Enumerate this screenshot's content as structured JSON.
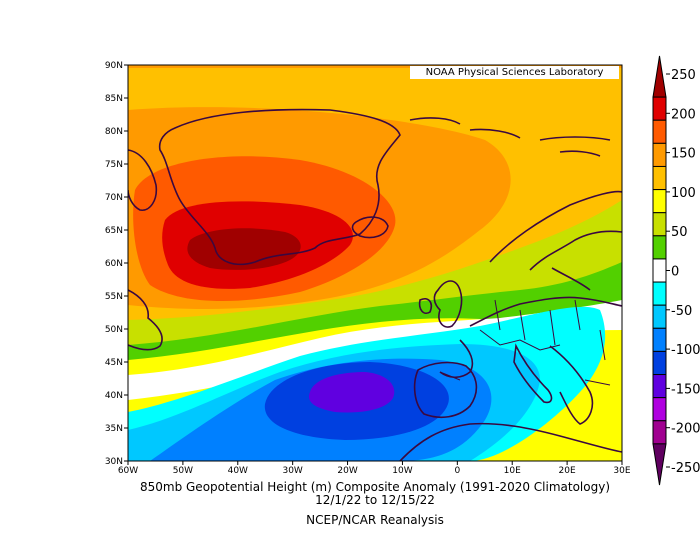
{
  "credit": "NOAA Physical Sciences Laboratory",
  "caption": {
    "line1": "850mb Geopotential Height (m) Composite Anomaly (1991-2020 Climatology)",
    "line2": "12/1/22  to 12/15/22",
    "line3": "NCEP/NCAR Reanalysis"
  },
  "axes": {
    "lon_ticks": [
      "60W",
      "50W",
      "40W",
      "30W",
      "20W",
      "10W",
      "0",
      "10E",
      "20E",
      "30E"
    ],
    "lat_ticks": [
      "90N",
      "85N",
      "80N",
      "75N",
      "70N",
      "65N",
      "60N",
      "55N",
      "50N",
      "45N",
      "40N",
      "35N",
      "30N"
    ],
    "lon_range": [
      -60,
      30
    ],
    "lat_range": [
      30,
      90
    ]
  },
  "colorbar": {
    "labels": [
      "250",
      "200",
      "150",
      "100",
      "50",
      "0",
      "-50",
      "-100",
      "-150",
      "-200",
      "-250"
    ],
    "colors": [
      "#a00000",
      "#e00000",
      "#ff5a00",
      "#ff9a00",
      "#ffc000",
      "#ffff00",
      "#c8e000",
      "#52d000",
      "#ffffff",
      "#00ffff",
      "#00c8ff",
      "#0080ff",
      "#0040e0",
      "#6000e0",
      "#b000e0",
      "#a00090",
      "#600060"
    ]
  },
  "chart_data": {
    "type": "heatmap",
    "variable": "850mb Geopotential Height (m) Composite Anomaly",
    "period": "12/1/22 to 12/15/22",
    "features": [
      {
        "sign": "positive",
        "peak_value": 250,
        "center_lon": -40,
        "center_lat": 62
      },
      {
        "sign": "negative",
        "peak_value": -150,
        "center_lon": -18,
        "center_lat": 41
      }
    ]
  }
}
